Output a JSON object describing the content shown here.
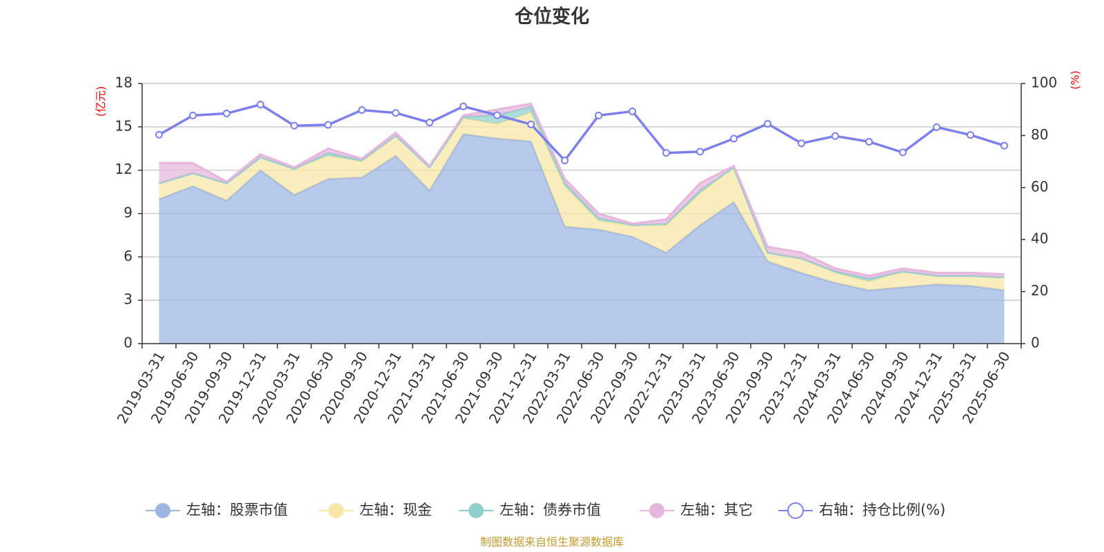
{
  "chart_data": {
    "type": "area",
    "title": "仓位变化",
    "source_note": "制图数据来自恒生聚源数据库",
    "left_axis": {
      "name": "(亿元)",
      "ylim": [
        0,
        18
      ],
      "ticks": [
        "0",
        "3",
        "6",
        "9",
        "12",
        "15",
        "18"
      ]
    },
    "right_axis": {
      "name": "(%)",
      "ylim": [
        0,
        100
      ],
      "ticks": [
        "0",
        "20",
        "40",
        "60",
        "80",
        "100"
      ]
    },
    "categories": [
      "2019-03-31",
      "2019-06-30",
      "2019-09-30",
      "2019-12-31",
      "2020-03-31",
      "2020-06-30",
      "2020-09-30",
      "2020-12-31",
      "2021-03-31",
      "2021-06-30",
      "2021-09-30",
      "2021-12-31",
      "2022-03-31",
      "2022-06-30",
      "2022-09-30",
      "2022-12-31",
      "2023-03-31",
      "2023-06-30",
      "2023-09-30",
      "2023-12-31",
      "2024-03-31",
      "2024-06-30",
      "2024-09-30",
      "2024-12-31",
      "2025-03-31",
      "2025-06-30"
    ],
    "series": [
      {
        "name": "左轴：股票市值",
        "axis": "left",
        "kind": "stacked-area",
        "color": "#9db6e0",
        "values": [
          10.0,
          10.9,
          9.9,
          12.0,
          10.3,
          11.4,
          11.5,
          13.0,
          10.6,
          14.5,
          14.2,
          14.0,
          8.1,
          7.9,
          7.4,
          6.3,
          8.2,
          9.8,
          5.7,
          4.9,
          4.2,
          3.7,
          3.9,
          4.1,
          4.0,
          3.7
        ]
      },
      {
        "name": "左轴：现金",
        "axis": "left",
        "kind": "stacked-area",
        "color": "#f8e7a5",
        "values": [
          1.1,
          0.9,
          1.2,
          0.9,
          1.8,
          1.6,
          1.1,
          1.4,
          1.6,
          1.1,
          1.0,
          2.0,
          2.8,
          0.6,
          0.8,
          1.9,
          2.2,
          2.4,
          0.6,
          1.0,
          0.7,
          0.6,
          1.1,
          0.6,
          0.7,
          0.9
        ]
      },
      {
        "name": "左轴：债券市值",
        "axis": "left",
        "kind": "stacked-area",
        "color": "#8fd0cf",
        "values": [
          0.0,
          0.0,
          0.0,
          0.0,
          0.0,
          0.2,
          0.1,
          0.0,
          0.0,
          0.1,
          0.6,
          0.4,
          0.2,
          0.2,
          0.0,
          0.1,
          0.2,
          0.0,
          0.0,
          0.0,
          0.1,
          0.2,
          0.0,
          0.0,
          0.0,
          0.0
        ]
      },
      {
        "name": "左轴：其它",
        "axis": "left",
        "kind": "stacked-area",
        "color": "#e6b6dc",
        "values": [
          1.4,
          0.7,
          0.1,
          0.2,
          0.1,
          0.3,
          0.1,
          0.2,
          0.1,
          0.1,
          0.4,
          0.2,
          0.3,
          0.3,
          0.1,
          0.3,
          0.5,
          0.1,
          0.4,
          0.4,
          0.2,
          0.2,
          0.2,
          0.2,
          0.2,
          0.2
        ]
      },
      {
        "name": "右轴：持仓比例(%)",
        "axis": "right",
        "kind": "line",
        "color": "#7b7ff0",
        "values": [
          80.3,
          87.7,
          88.5,
          91.9,
          83.8,
          84.1,
          89.8,
          88.7,
          85.0,
          91.2,
          87.8,
          84.3,
          70.4,
          87.7,
          89.3,
          73.3,
          73.8,
          78.8,
          84.5,
          77.0,
          79.8,
          77.6,
          73.5,
          83.2,
          80.2,
          76.1
        ]
      }
    ],
    "grid": true,
    "legend_position": "bottom"
  }
}
